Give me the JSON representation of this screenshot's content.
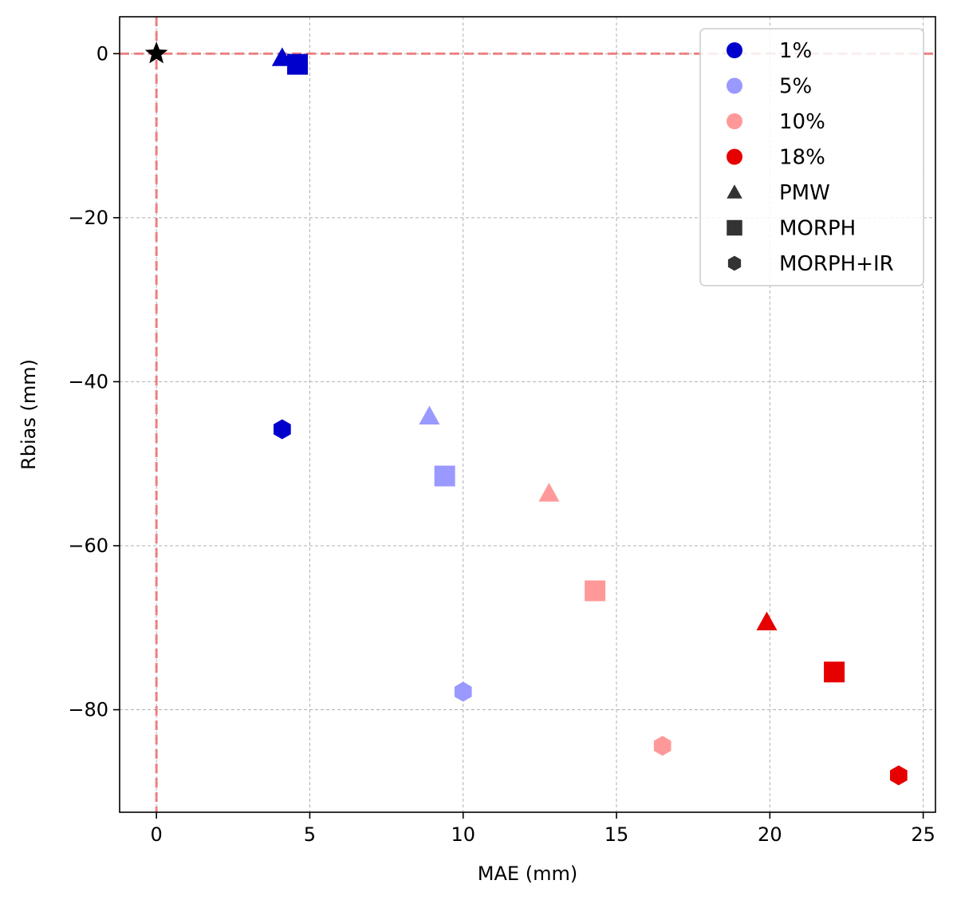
{
  "chart_data": {
    "type": "scatter",
    "xlabel": "MAE (mm)",
    "ylabel": "Rbias (mm)",
    "xlim": [
      -1.2,
      25.4
    ],
    "ylim": [
      -92.5,
      4.5
    ],
    "xticks": [
      "0",
      "5",
      "10",
      "15",
      "20",
      "25"
    ],
    "xtick_values": [
      0,
      5,
      10,
      15,
      20,
      25
    ],
    "yticks": [
      "0",
      "−20",
      "−40",
      "−60",
      "−80"
    ],
    "ytick_values": [
      0,
      -20,
      -40,
      -60,
      -80
    ],
    "grid": true,
    "legend_position": "top-right",
    "reference_point": {
      "x": 0,
      "y": 0,
      "marker": "star",
      "color": "#000000"
    },
    "reference_lines": {
      "x": 0,
      "y": 0,
      "color": "#ee6666",
      "style": "dashed"
    },
    "series": [
      {
        "name": "1%",
        "color": "#0000cc",
        "points": [
          {
            "marker": "PMW",
            "x": 4.1,
            "y": -0.5
          },
          {
            "marker": "MORPH",
            "x": 4.6,
            "y": -1.3
          },
          {
            "marker": "MORPH+IR",
            "x": 4.1,
            "y": -45.8
          }
        ]
      },
      {
        "name": "5%",
        "color": "#9999ff",
        "points": [
          {
            "marker": "PMW",
            "x": 8.9,
            "y": -44.2
          },
          {
            "marker": "MORPH",
            "x": 9.4,
            "y": -51.5
          },
          {
            "marker": "MORPH+IR",
            "x": 10.0,
            "y": -77.8
          }
        ]
      },
      {
        "name": "10%",
        "color": "#ff9999",
        "points": [
          {
            "marker": "PMW",
            "x": 12.8,
            "y": -53.6
          },
          {
            "marker": "MORPH",
            "x": 14.3,
            "y": -65.5
          },
          {
            "marker": "MORPH+IR",
            "x": 16.5,
            "y": -84.4
          }
        ]
      },
      {
        "name": "18%",
        "color": "#e60000",
        "points": [
          {
            "marker": "PMW",
            "x": 19.9,
            "y": -69.3
          },
          {
            "marker": "MORPH",
            "x": 22.1,
            "y": -75.4
          },
          {
            "marker": "MORPH+IR",
            "x": 24.2,
            "y": -88.0
          }
        ]
      }
    ],
    "legend": [
      {
        "label": "1%",
        "marker": "circle",
        "color": "#0000cc"
      },
      {
        "label": "5%",
        "marker": "circle",
        "color": "#9999ff"
      },
      {
        "label": "10%",
        "marker": "circle",
        "color": "#ff9999"
      },
      {
        "label": "18%",
        "marker": "circle",
        "color": "#e60000"
      },
      {
        "label": "PMW",
        "marker": "triangle",
        "color": "#333333"
      },
      {
        "label": "MORPH",
        "marker": "square",
        "color": "#333333"
      },
      {
        "label": "MORPH+IR",
        "marker": "hexagon",
        "color": "#333333"
      }
    ]
  }
}
